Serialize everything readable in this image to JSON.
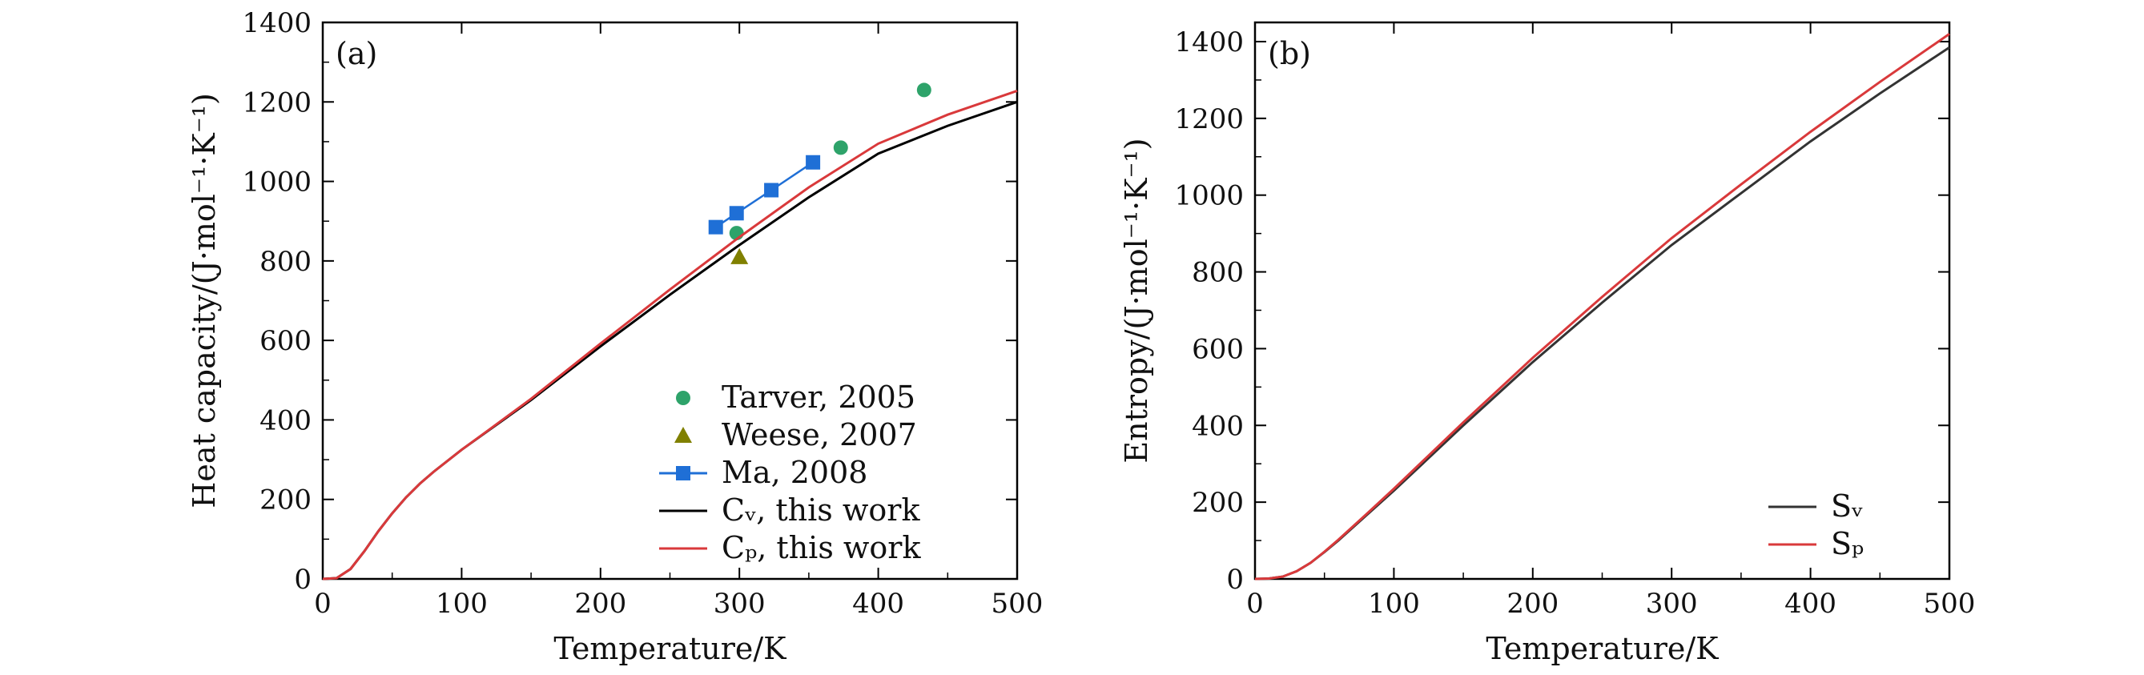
{
  "colors": {
    "tarver": "#2ea36a",
    "weese": "#808000",
    "ma": "#1f6fd6",
    "cv": "#000000",
    "cp": "#d9393b",
    "sv": "#333333",
    "sp": "#d9393b"
  },
  "chart_data": [
    {
      "type": "line",
      "panel_label": "(a)",
      "xlabel": "Temperature/K",
      "ylabel": "Heat capacity/(J·mol⁻¹·K⁻¹)",
      "xlim": [
        0,
        500
      ],
      "ylim": [
        0,
        1400
      ],
      "xticks": [
        0,
        100,
        200,
        300,
        400,
        500
      ],
      "yticks": [
        0,
        200,
        400,
        600,
        800,
        1000,
        1200,
        1400
      ],
      "legend_position": "bottom-right",
      "series": [
        {
          "name": "Tarver, 2005",
          "kind": "scatter",
          "marker": "circle",
          "color_key": "tarver",
          "x": [
            298,
            373,
            433
          ],
          "y": [
            870,
            1085,
            1230
          ]
        },
        {
          "name": "Weese, 2007",
          "kind": "scatter",
          "marker": "triangle",
          "color_key": "weese",
          "x": [
            300
          ],
          "y": [
            810
          ]
        },
        {
          "name": "Ma, 2008",
          "kind": "line-marker",
          "marker": "square",
          "color_key": "ma",
          "x": [
            283,
            298,
            323,
            353
          ],
          "y": [
            885,
            920,
            978,
            1048
          ]
        },
        {
          "name": "Cᵥ, this work",
          "kind": "line",
          "color_key": "cv",
          "x": [
            0,
            10,
            20,
            30,
            40,
            50,
            60,
            70,
            80,
            100,
            120,
            150,
            200,
            250,
            300,
            350,
            400,
            450,
            500
          ],
          "y": [
            0,
            2,
            25,
            70,
            120,
            165,
            205,
            240,
            270,
            325,
            375,
            450,
            585,
            715,
            840,
            960,
            1070,
            1140,
            1200
          ]
        },
        {
          "name": "Cₚ, this work",
          "kind": "line",
          "color_key": "cp",
          "x": [
            0,
            10,
            20,
            30,
            40,
            50,
            60,
            70,
            80,
            100,
            120,
            150,
            200,
            250,
            300,
            350,
            400,
            450,
            500
          ],
          "y": [
            0,
            2,
            25,
            70,
            120,
            165,
            205,
            240,
            270,
            325,
            376,
            453,
            592,
            728,
            860,
            985,
            1095,
            1168,
            1228
          ]
        }
      ]
    },
    {
      "type": "line",
      "panel_label": "(b)",
      "xlabel": "Temperature/K",
      "ylabel": "Entropy/(J·mol⁻¹·K⁻¹)",
      "xlim": [
        0,
        500
      ],
      "ylim": [
        0,
        1450
      ],
      "xticks": [
        0,
        100,
        200,
        300,
        400,
        500
      ],
      "yticks": [
        0,
        200,
        400,
        600,
        800,
        1000,
        1200,
        1400
      ],
      "legend_position": "bottom-right",
      "series": [
        {
          "name": "Sᵥ",
          "kind": "line",
          "color_key": "sv",
          "x": [
            0,
            10,
            20,
            30,
            40,
            50,
            60,
            80,
            100,
            150,
            200,
            250,
            300,
            350,
            400,
            450,
            500
          ],
          "y": [
            0,
            1,
            6,
            20,
            42,
            70,
            100,
            165,
            230,
            400,
            565,
            720,
            870,
            1005,
            1140,
            1265,
            1385
          ]
        },
        {
          "name": "Sₚ",
          "kind": "line",
          "color_key": "sp",
          "x": [
            0,
            10,
            20,
            30,
            40,
            50,
            60,
            80,
            100,
            150,
            200,
            250,
            300,
            350,
            400,
            450,
            500
          ],
          "y": [
            0,
            1,
            6,
            20,
            42,
            71,
            102,
            168,
            235,
            408,
            576,
            735,
            888,
            1028,
            1165,
            1295,
            1420
          ]
        }
      ]
    }
  ]
}
